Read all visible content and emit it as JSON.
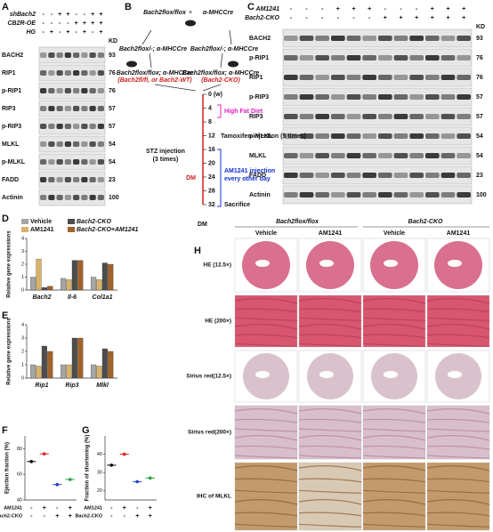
{
  "panel_a": {
    "letter": "A",
    "kd_header": "KD",
    "conditions": [
      {
        "label": "shBach2",
        "signs": [
          "-",
          "-",
          "+",
          "+",
          "-",
          "-",
          "+",
          "+"
        ]
      },
      {
        "label": "CB2R-OE",
        "signs": [
          "-",
          "-",
          "-",
          "-",
          "+",
          "+",
          "+",
          "+"
        ]
      },
      {
        "label": "HG",
        "signs": [
          "-",
          "+",
          "-",
          "+",
          "-",
          "+",
          "-",
          "+"
        ]
      }
    ],
    "blots": [
      {
        "protein": "BACH2",
        "kd": 93
      },
      {
        "protein": "RIP1",
        "kd": 76
      },
      {
        "protein": "p-RIP1",
        "kd": 76
      },
      {
        "protein": "RIP3",
        "kd": 57
      },
      {
        "protein": "p-RIP3",
        "kd": 57
      },
      {
        "protein": "MLKL",
        "kd": 54
      },
      {
        "protein": "p-MLKL",
        "kd": 54
      },
      {
        "protein": "FADD",
        "kd": 23
      },
      {
        "protein": "Actinin",
        "kd": 100
      }
    ]
  },
  "panel_b": {
    "letter": "B",
    "parent_left": "Bach2flox/flox",
    "parent_right": "α-MHCCre",
    "cross_left": "Bach2flox/-; α-MHCCre",
    "cross_right": "Bach2flox/-; α-MHCCre",
    "wt_genotype": "Bach2flox/flox; α-MHCCre",
    "wt_name": "(Bach2fl/fl, or Bach2-WT)",
    "cko_genotype": "Bach2flox/flox; α-MHCCre",
    "cko_name": "(Bach2-CKO)",
    "weeks": [
      "0 (w)",
      "4",
      "8",
      "12",
      "16",
      "20",
      "24",
      "28",
      "32"
    ],
    "stz": [
      "STZ injection",
      "(3 times)"
    ],
    "hfd": "High Fat Diet",
    "tamoxifen": "Tamoxifen injection (5 times)",
    "dm": "DM",
    "am1241": [
      "AM1241 injection",
      "every other day"
    ],
    "sacrifice": "Sacrifice"
  },
  "panel_c": {
    "letter": "C",
    "kd_header": "KD",
    "conditions": [
      {
        "label": "AM1241",
        "signs": [
          "-",
          "-",
          "-",
          "+",
          "+",
          "+",
          "-",
          "-",
          "-",
          "+",
          "+",
          "+"
        ]
      },
      {
        "label": "Bach2-CKO",
        "signs": [
          "-",
          "-",
          "-",
          "-",
          "-",
          "-",
          "+",
          "+",
          "+",
          "+",
          "+",
          "+"
        ]
      }
    ],
    "blots": [
      {
        "protein": "BACH2",
        "kd": 93
      },
      {
        "protein": "p-RIP1",
        "kd": 76
      },
      {
        "protein": "RIP1",
        "kd": 76
      },
      {
        "protein": "p-RIP3",
        "kd": 57
      },
      {
        "protein": "RIP3",
        "kd": 57
      },
      {
        "protein": "p-MLKL",
        "kd": 54
      },
      {
        "protein": "MLKL",
        "kd": 54
      },
      {
        "protein": "FADD",
        "kd": 23
      },
      {
        "protein": "Actinin",
        "kd": 100
      }
    ]
  },
  "panel_d": {
    "letter": "D",
    "type": "bar",
    "ylabel": "Relative gene expressions",
    "categories": [
      "Bach2",
      "Il-6",
      "Col1a1"
    ],
    "series": [
      {
        "name": "Vehicle",
        "color": "#a6a6a6",
        "values": [
          1,
          0.9,
          1
        ]
      },
      {
        "name": "AM1241",
        "color": "#d9b26a",
        "values": [
          2.4,
          0.8,
          0.8
        ]
      },
      {
        "name": "Bach2-CKO",
        "color": "#4d4d4d",
        "values": [
          0.2,
          2.3,
          2.1
        ]
      },
      {
        "name": "Bach2-CKO+AM1241",
        "color": "#a0632a",
        "values": [
          0.3,
          2.3,
          2.0
        ]
      }
    ],
    "ylim": [
      0,
      4
    ],
    "yticks": [
      0,
      1,
      2,
      3,
      4
    ]
  },
  "panel_e": {
    "letter": "E",
    "type": "bar",
    "ylabel": "Relative gene expressions",
    "categories": [
      "Rip1",
      "Rip3",
      "Mlkl"
    ],
    "series": [
      {
        "color": "#a6a6a6",
        "values": [
          1,
          1,
          1
        ]
      },
      {
        "color": "#d9b26a",
        "values": [
          0.9,
          1.0,
          0.9
        ]
      },
      {
        "color": "#4d4d4d",
        "values": [
          2.4,
          3.0,
          2.2
        ]
      },
      {
        "color": "#a0632a",
        "values": [
          2.0,
          3.0,
          2.0
        ]
      }
    ],
    "ylim": [
      0,
      4
    ],
    "yticks": [
      0,
      1,
      2,
      3,
      4
    ]
  },
  "panel_f": {
    "letter": "F",
    "type": "dot",
    "ylabel": "Ejection fraction (%)",
    "groups": [
      {
        "color": "#000000",
        "value": 70
      },
      {
        "color": "#e02020",
        "value": 76
      },
      {
        "color": "#2040d0",
        "value": 52
      },
      {
        "color": "#20a040",
        "value": 56
      }
    ],
    "rows": [
      {
        "label": "AM1241",
        "signs": [
          "-",
          "+",
          "-",
          "+"
        ]
      },
      {
        "label": "Bach2-CKO",
        "signs": [
          "-",
          "-",
          "+",
          "+"
        ]
      }
    ],
    "ylim": [
      40,
      90
    ],
    "yticks": [
      40,
      60,
      80
    ]
  },
  "panel_g": {
    "letter": "G",
    "type": "dot",
    "ylabel": "Fraction of shortening (%)",
    "groups": [
      {
        "color": "#000000",
        "value": 34
      },
      {
        "color": "#e02020",
        "value": 40
      },
      {
        "color": "#2040d0",
        "value": 25
      },
      {
        "color": "#20a040",
        "value": 27
      }
    ],
    "rows": [
      {
        "label": "AM1241",
        "signs": [
          "-",
          "+",
          "-",
          "+"
        ]
      },
      {
        "label": "Bach2-CKO",
        "signs": [
          "-",
          "-",
          "+",
          "+"
        ]
      }
    ],
    "ylim": [
      15,
      50
    ],
    "yticks": [
      20,
      30,
      40
    ]
  },
  "panel_h": {
    "letter": "H",
    "dm": "DM",
    "group_left": "Bach2flox/flox",
    "group_right": "Bach2-CKO",
    "columns": [
      "Vehicle",
      "AM1241",
      "Vehicle",
      "AM1241"
    ],
    "rows": [
      "HE (12.5×)",
      "HE (200×)",
      "Sirius red(12.5×)",
      "Sirius red(200×)",
      "IHC of MLKL"
    ]
  }
}
